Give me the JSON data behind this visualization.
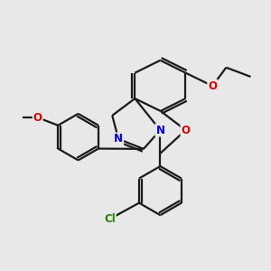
{
  "bg_color": "#e8e8e8",
  "bond_color": "#1a1a1a",
  "bond_width": 1.6,
  "atom_colors": {
    "N": "#0000ee",
    "O": "#dd0000",
    "Cl": "#228800",
    "C": "#1a1a1a"
  },
  "figsize": [
    3.0,
    3.0
  ],
  "dpi": 100,
  "xlim": [
    0,
    9
  ],
  "ylim": [
    0,
    9
  ]
}
